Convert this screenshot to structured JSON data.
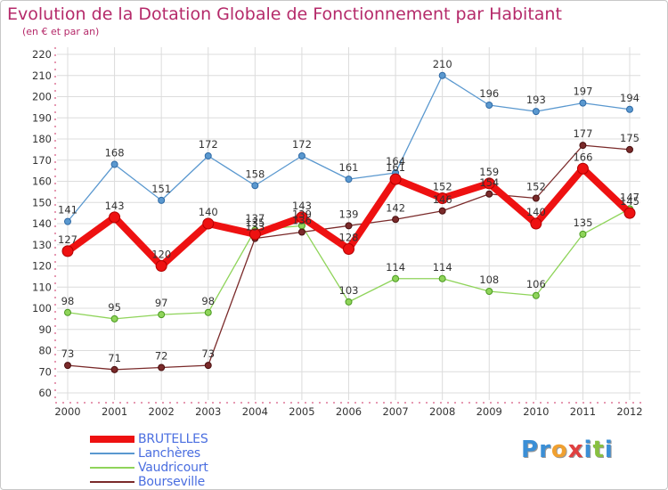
{
  "title": "Evolution de la Dotation Globale de Fonctionnement par Habitant",
  "subtitle": "(en € et par an)",
  "logo": {
    "text": "Proxiti",
    "letters": [
      "P",
      "r",
      "o",
      "x",
      "i",
      "t",
      "i"
    ],
    "colors": [
      "#3b8fd6",
      "#3b8fd6",
      "#f0a030",
      "#e04040",
      "#3b8fd6",
      "#88c040",
      "#3b8fd6"
    ]
  },
  "chart_data": {
    "type": "line",
    "x": [
      "2000",
      "2001",
      "2002",
      "2003",
      "2004",
      "2005",
      "2006",
      "2007",
      "2008",
      "2009",
      "2010",
      "2011",
      "2012"
    ],
    "ylim": [
      60,
      220
    ],
    "yticks": [
      "60",
      "70",
      "80",
      "90",
      "100",
      "110",
      "120",
      "130",
      "140",
      "150",
      "160",
      "170",
      "180",
      "190",
      "200",
      "210",
      "220"
    ],
    "grid": true,
    "legend_position": "bottom-left",
    "series": [
      {
        "name": "Lanchères",
        "color": "#5a98cf",
        "values": [
          141,
          168,
          151,
          172,
          158,
          172,
          161,
          164,
          210,
          196,
          193,
          197,
          194
        ],
        "labels": [
          "141",
          "168",
          "151",
          "172",
          "158",
          "172",
          "161",
          "164",
          "210",
          "196",
          "193",
          "197",
          "194"
        ]
      },
      {
        "name": "Vaudricourt",
        "color": "#8fd45a",
        "values": [
          98,
          95,
          97,
          98,
          137,
          139,
          103,
          114,
          114,
          108,
          106,
          135,
          147
        ],
        "labels": [
          "98",
          "95",
          "97",
          "98",
          "137",
          "139",
          "103",
          "114",
          "114",
          "108",
          "106",
          "135",
          "147"
        ]
      },
      {
        "name": "Bourseville",
        "color": "#7a2a2a",
        "values": [
          73,
          71,
          72,
          73,
          133,
          136,
          139,
          142,
          146,
          154,
          152,
          177,
          175
        ],
        "labels": [
          "73",
          "71",
          "72",
          "73",
          "133",
          "136",
          "139",
          "142",
          "146",
          "154",
          "152",
          "177",
          "175"
        ]
      },
      {
        "name": "BRUTELLES",
        "color": "#ee1111",
        "values": [
          127,
          143,
          120,
          140,
          135,
          143,
          128,
          161,
          152,
          159,
          140,
          166,
          145
        ],
        "labels": [
          "127",
          "143",
          "120",
          "140",
          "135",
          "143",
          "128",
          "161",
          "152",
          "159",
          "140",
          "166",
          "145"
        ]
      }
    ]
  }
}
